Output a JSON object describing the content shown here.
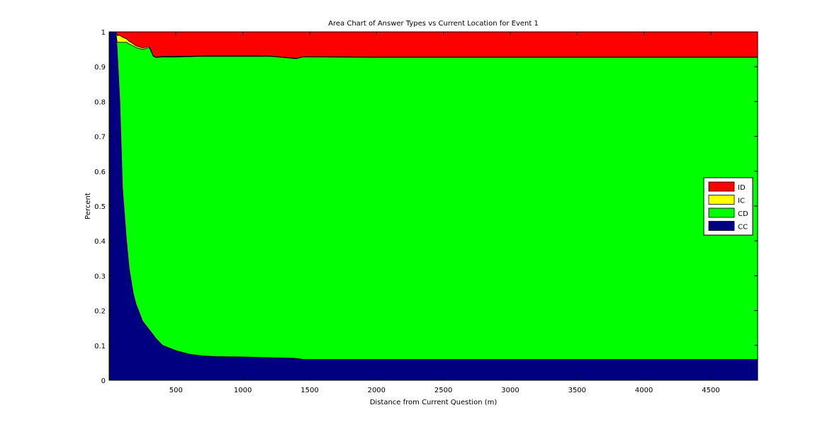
{
  "chart_data": {
    "type": "area",
    "title": "Area Chart of Answer Types vs Current Location for Event 1",
    "xlabel": "Distance from Current Question (m)",
    "ylabel": "Percent",
    "xlim": [
      0,
      4850
    ],
    "ylim": [
      0,
      1
    ],
    "x_ticks": [
      500,
      1000,
      1500,
      2000,
      2500,
      3000,
      3500,
      4000,
      4500
    ],
    "y_ticks": [
      0,
      0.1,
      0.2,
      0.3,
      0.4,
      0.5,
      0.6,
      0.7,
      0.8,
      0.9,
      1
    ],
    "y_tick_labels": [
      "0",
      "0.1",
      "0.2",
      "0.3",
      "0.4",
      "0.5",
      "0.6",
      "0.7",
      "0.8",
      "0.9",
      "1"
    ],
    "grid": false,
    "legend_position": "right",
    "stacked": true,
    "x": [
      0,
      30,
      50,
      60,
      80,
      100,
      130,
      150,
      180,
      200,
      250,
      300,
      330,
      350,
      400,
      500,
      600,
      700,
      800,
      1000,
      1200,
      1400,
      1450,
      2000,
      3000,
      4000,
      4850
    ],
    "series": [
      {
        "name": "CC",
        "color": "#000080",
        "values": [
          1.0,
          1.0,
          1.0,
          0.95,
          0.8,
          0.55,
          0.4,
          0.32,
          0.25,
          0.22,
          0.17,
          0.145,
          0.13,
          0.12,
          0.1,
          0.085,
          0.075,
          0.07,
          0.068,
          0.067,
          0.065,
          0.063,
          0.06,
          0.06,
          0.06,
          0.06,
          0.06
        ]
      },
      {
        "name": "CD",
        "color": "#00ff00",
        "values": [
          0.0,
          0.0,
          0.0,
          0.02,
          0.17,
          0.42,
          0.57,
          0.645,
          0.71,
          0.735,
          0.78,
          0.81,
          0.8,
          0.806,
          0.828,
          0.843,
          0.854,
          0.86,
          0.862,
          0.863,
          0.865,
          0.86,
          0.868,
          0.867,
          0.867,
          0.867,
          0.867
        ]
      },
      {
        "name": "IC",
        "color": "#ffff00",
        "values": [
          0.0,
          0.0,
          0.0,
          0.02,
          0.02,
          0.015,
          0.01,
          0.008,
          0.006,
          0.005,
          0.004,
          0.003,
          0.002,
          0.002,
          0.002,
          0.002,
          0.001,
          0.001,
          0.001,
          0.001,
          0.001,
          0.001,
          0.001,
          0.001,
          0.001,
          0.001,
          0.001
        ]
      },
      {
        "name": "ID",
        "color": "#ff0000",
        "values": [
          0.0,
          0.0,
          0.0,
          0.01,
          0.01,
          0.015,
          0.02,
          0.027,
          0.034,
          0.04,
          0.046,
          0.042,
          0.068,
          0.072,
          0.07,
          0.07,
          0.07,
          0.069,
          0.069,
          0.069,
          0.069,
          0.076,
          0.071,
          0.072,
          0.072,
          0.072,
          0.072
        ]
      }
    ],
    "legend_order": [
      "ID",
      "IC",
      "CD",
      "CC"
    ]
  }
}
